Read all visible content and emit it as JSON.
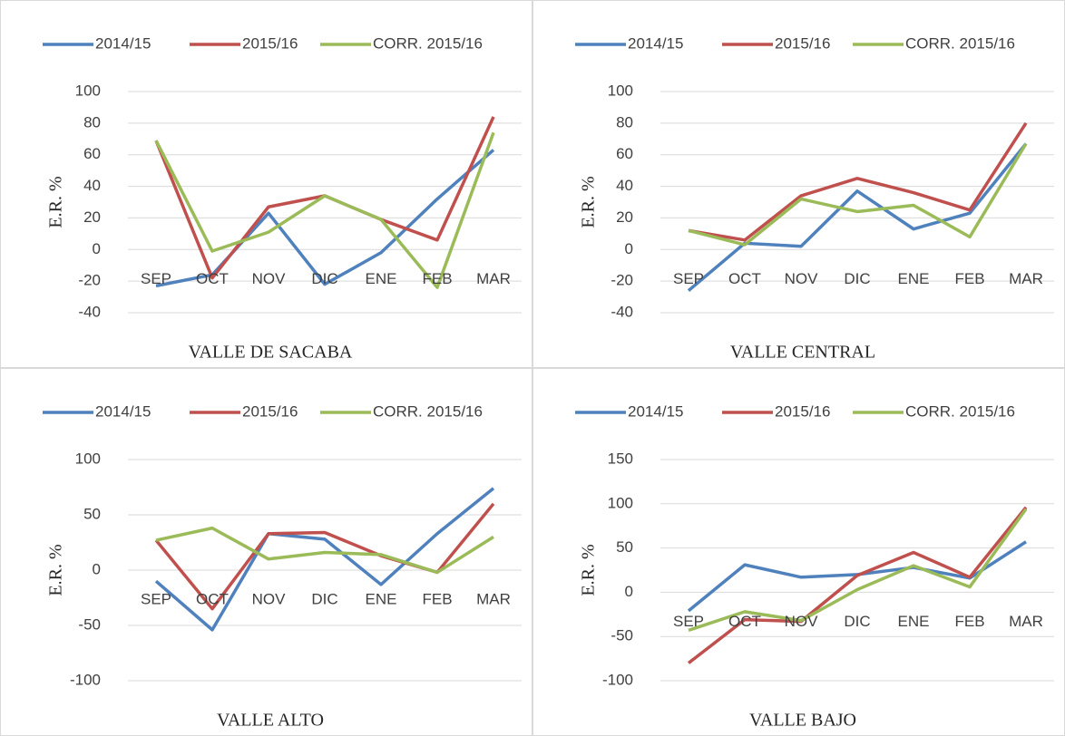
{
  "chart_data": [
    {
      "type": "line",
      "title": "VALLE DE SACABA",
      "y_label": "E.R. %",
      "categories": [
        "SEP",
        "OCT",
        "NOV",
        "DIC",
        "ENE",
        "FEB",
        "MAR"
      ],
      "ylim": [
        -40,
        100
      ],
      "yticks": [
        -40,
        -20,
        0,
        20,
        40,
        60,
        80,
        100
      ],
      "grid": true,
      "legend": "top",
      "series": [
        {
          "name": "2014/15",
          "color": "#4f81bd",
          "values": [
            -23,
            -16,
            23,
            -22,
            -2,
            32,
            63
          ]
        },
        {
          "name": "2015/16",
          "color": "#c0504d",
          "values": [
            69,
            -18,
            27,
            34,
            19,
            6,
            84
          ]
        },
        {
          "name": "CORR. 2015/16",
          "color": "#9bbb59",
          "values": [
            69,
            -1,
            11,
            34,
            19,
            -24,
            74
          ]
        }
      ]
    },
    {
      "type": "line",
      "title": "VALLE CENTRAL",
      "y_label": "E.R. %",
      "categories": [
        "SEP",
        "OCT",
        "NOV",
        "DIC",
        "ENE",
        "FEB",
        "MAR"
      ],
      "ylim": [
        -40,
        100
      ],
      "yticks": [
        -40,
        -20,
        0,
        20,
        40,
        60,
        80,
        100
      ],
      "grid": true,
      "legend": "top",
      "series": [
        {
          "name": "2014/15",
          "color": "#4f81bd",
          "values": [
            -26,
            4,
            2,
            37,
            13,
            23,
            67
          ]
        },
        {
          "name": "2015/16",
          "color": "#c0504d",
          "values": [
            12,
            6,
            34,
            45,
            36,
            25,
            80
          ]
        },
        {
          "name": "CORR. 2015/16",
          "color": "#9bbb59",
          "values": [
            12,
            3,
            32,
            24,
            28,
            8,
            67
          ]
        }
      ]
    },
    {
      "type": "line",
      "title": "VALLE ALTO",
      "y_label": "E.R. %",
      "categories": [
        "SEP",
        "OCT",
        "NOV",
        "DIC",
        "ENE",
        "FEB",
        "MAR"
      ],
      "ylim": [
        -100,
        100
      ],
      "yticks": [
        -100,
        -50,
        0,
        50,
        100
      ],
      "grid": true,
      "legend": "top",
      "series": [
        {
          "name": "2014/15",
          "color": "#4f81bd",
          "values": [
            -10,
            -54,
            33,
            28,
            -13,
            33,
            74
          ]
        },
        {
          "name": "2015/16",
          "color": "#c0504d",
          "values": [
            27,
            -35,
            33,
            34,
            13,
            -2,
            60
          ]
        },
        {
          "name": "CORR. 2015/16",
          "color": "#9bbb59",
          "values": [
            27,
            38,
            10,
            16,
            14,
            -2,
            30
          ]
        }
      ]
    },
    {
      "type": "line",
      "title": "VALLE BAJO",
      "y_label": "E.R. %",
      "categories": [
        "SEP",
        "OCT",
        "NOV",
        "DIC",
        "ENE",
        "FEB",
        "MAR"
      ],
      "ylim": [
        -100,
        150
      ],
      "yticks": [
        -100,
        -50,
        0,
        50,
        100,
        150
      ],
      "grid": true,
      "legend": "top",
      "series": [
        {
          "name": "2014/15",
          "color": "#4f81bd",
          "values": [
            -21,
            31,
            17,
            20,
            28,
            16,
            57
          ]
        },
        {
          "name": "2015/16",
          "color": "#c0504d",
          "values": [
            -80,
            -31,
            -33,
            19,
            45,
            17,
            96
          ]
        },
        {
          "name": "CORR. 2015/16",
          "color": "#9bbb59",
          "values": [
            -43,
            -22,
            -32,
            3,
            30,
            6,
            94
          ]
        }
      ]
    }
  ]
}
